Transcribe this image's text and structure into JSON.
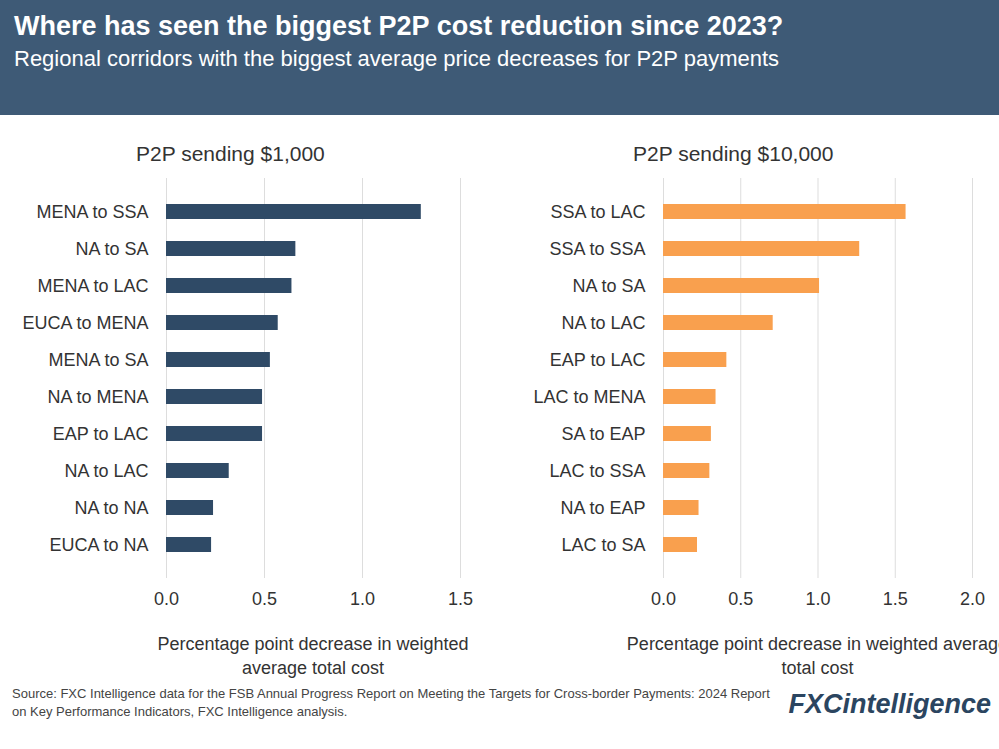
{
  "title": "Where has seen the biggest P2P cost reduction since 2023?",
  "subtitle": "Regional corridors with the biggest average price decreases for P2P payments",
  "source": "Source: FXC Intelligence data for the FSB Annual Progress Report on Meeting the Targets for Cross-border Payments: 2024 Report on Key Performance Indicators, FXC Intelligence analysis.",
  "logo": "FXCintelligence",
  "chart_data": [
    {
      "type": "bar",
      "orientation": "horizontal",
      "title": "P2P sending $1,000",
      "xlabel": "Percentage point decrease in weighted average total cost",
      "categories": [
        "MENA to SSA",
        "NA to SA",
        "MENA to LAC",
        "EUCA to MENA",
        "MENA to SA",
        "NA to MENA",
        "EAP to LAC",
        "NA to LAC",
        "NA to NA",
        "EUCA to NA"
      ],
      "values": [
        1.3,
        0.66,
        0.64,
        0.57,
        0.53,
        0.49,
        0.49,
        0.32,
        0.24,
        0.23
      ],
      "color": "#2f4a66",
      "xlim": [
        0,
        1.5
      ],
      "xticks": [
        {
          "value": 0,
          "label": "0.0"
        },
        {
          "value": 0.5,
          "label": "0.5"
        },
        {
          "value": 1,
          "label": "1.0"
        },
        {
          "value": 1.5,
          "label": "1.5"
        }
      ],
      "grid": true
    },
    {
      "type": "bar",
      "orientation": "horizontal",
      "title": "P2P sending $10,000",
      "xlabel": "Percentage point decrease in weighted average total cost",
      "categories": [
        "SSA to LAC",
        "SSA to SSA",
        "NA to SA",
        "NA to LAC",
        "EAP to LAC",
        "LAC to MENA",
        "SA to EAP",
        "LAC to SSA",
        "NA to EAP",
        "LAC to SA"
      ],
      "values": [
        1.57,
        1.27,
        1.01,
        0.71,
        0.41,
        0.34,
        0.31,
        0.3,
        0.23,
        0.22
      ],
      "color": "#f9a04e",
      "xlim": [
        0,
        2
      ],
      "xticks": [
        {
          "value": 0,
          "label": "0.0"
        },
        {
          "value": 0.5,
          "label": "0.5"
        },
        {
          "value": 1,
          "label": "1.0"
        },
        {
          "value": 1.5,
          "label": "1.5"
        },
        {
          "value": 2,
          "label": "2.0"
        }
      ],
      "grid": true
    }
  ]
}
